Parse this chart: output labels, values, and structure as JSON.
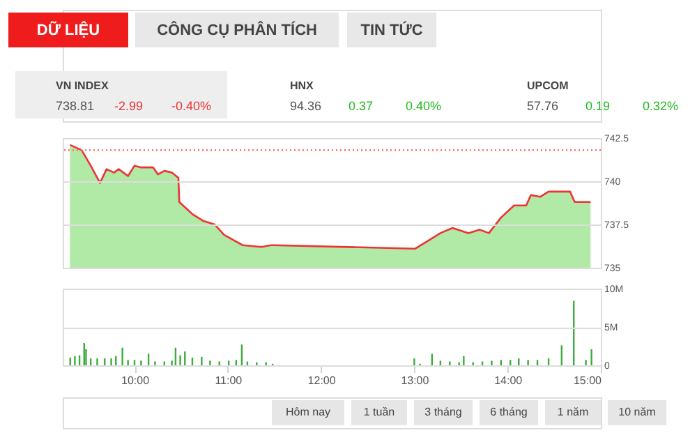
{
  "chart_data": [
    {
      "type": "other",
      "annotations": [
        "DỮ LIỆU",
        "CÔNG CỤ PHÂN TÍCH",
        "TIN TỨC",
        "VN INDEX",
        "738.81",
        "-2.99",
        "-0.40%",
        "HNX",
        "94.36",
        "0.37",
        "0.40%",
        "UPCOM",
        "57.76",
        "0.19",
        "0.32%"
      ],
      "colors": [
        "#ffffff",
        "#444444",
        "#444444",
        "#444444",
        "#555555",
        "#ee3333",
        "#ee3333",
        "#444444",
        "#555555",
        "#22bb22",
        "#22bb22",
        "#444444",
        "#555555",
        "#22bb22",
        "#22bb22"
      ]
    },
    {
      "type": "area",
      "xlim": [
        9.23,
        15.0
      ],
      "ylim": [
        735,
        742.5
      ],
      "yticks": [
        735,
        737.5,
        740,
        742.5
      ],
      "grid": "y",
      "tick_labels": "y",
      "x": [
        9.308,
        9.433,
        9.53,
        9.63,
        9.7,
        9.78,
        9.83,
        9.93,
        10.0,
        10.07,
        10.2,
        10.25,
        10.32,
        10.4,
        10.47,
        10.48,
        10.62,
        10.74,
        10.86,
        10.96,
        11.06,
        11.16,
        11.36,
        11.46,
        11.5,
        13.01,
        13.13,
        13.28,
        13.41,
        13.58,
        13.7,
        13.8,
        13.93,
        14.07,
        14.2,
        14.25,
        14.35,
        14.44,
        14.67,
        14.72,
        14.89
      ],
      "series": [
        {
          "type": "area",
          "color": "#7ddc6a",
          "values": [
            742.1,
            741.8,
            740.9,
            739.9,
            740.7,
            740.5,
            740.7,
            740.3,
            740.9,
            740.8,
            740.8,
            740.4,
            740.6,
            740.5,
            740.2,
            738.8,
            738.1,
            737.7,
            737.5,
            736.9,
            736.6,
            736.3,
            736.2,
            736.3,
            736.3,
            736.1,
            736.5,
            737.0,
            737.3,
            737.0,
            737.2,
            737.0,
            737.9,
            738.6,
            738.6,
            739.2,
            739.1,
            739.4,
            739.4,
            738.8,
            738.8
          ]
        },
        {
          "type": "line",
          "color": "#ee3333",
          "values": [
            742.1,
            741.8,
            740.9,
            739.9,
            740.7,
            740.5,
            740.7,
            740.3,
            740.9,
            740.8,
            740.8,
            740.4,
            740.6,
            740.5,
            740.2,
            738.8,
            738.1,
            737.7,
            737.5,
            736.9,
            736.6,
            736.3,
            736.2,
            736.3,
            736.3,
            736.1,
            736.5,
            737.0,
            737.3,
            737.0,
            737.2,
            737.0,
            737.9,
            738.6,
            738.6,
            739.2,
            739.1,
            739.4,
            739.4,
            738.8,
            738.8
          ]
        }
      ],
      "ref_lines": [
        {
          "axis": "y",
          "value": 741.8,
          "color": "#ff7777",
          "line_style": "dotted"
        }
      ]
    },
    {
      "type": "bar",
      "xlim": [
        9.23,
        15.0
      ],
      "ylim": [
        0,
        10
      ],
      "grid": "y",
      "xticks": [
        {
          "value": 10,
          "label": "10:00"
        },
        {
          "value": 11,
          "label": "11:00"
        },
        {
          "value": 12,
          "label": "12:00"
        },
        {
          "value": 13,
          "label": "13:00"
        },
        {
          "value": 14,
          "label": "14:00"
        },
        {
          "value": 15,
          "label": "15:00"
        }
      ],
      "yticks": [
        0,
        {
          "value": 5,
          "label": "5M"
        },
        {
          "value": 10,
          "label": "10M"
        }
      ],
      "series": [
        {
          "color": "#3cac3c",
          "x": [
            9.31,
            9.36,
            9.41,
            9.46,
            9.48,
            9.53,
            9.6,
            9.68,
            9.75,
            9.8,
            9.87,
            9.93,
            10.0,
            10.07,
            10.15,
            10.22,
            10.32,
            10.4,
            10.44,
            10.49,
            10.54,
            10.62,
            10.72,
            10.81,
            10.91,
            11.01,
            11.09,
            11.15,
            11.21,
            11.31,
            11.41,
            11.48,
            13.0,
            13.06,
            13.19,
            13.28,
            13.38,
            13.48,
            13.53,
            13.63,
            13.73,
            13.83,
            13.93,
            14.03,
            14.12,
            14.22,
            14.32,
            14.44,
            14.58,
            14.71,
            14.84,
            14.9
          ],
          "values": [
            1.0,
            1.2,
            1.3,
            2.9,
            2.1,
            0.9,
            0.9,
            0.9,
            0.9,
            1.2,
            2.3,
            0.7,
            0.7,
            0.6,
            1.5,
            0.5,
            0.5,
            0.6,
            2.3,
            1.3,
            1.8,
            1.0,
            1.1,
            0.6,
            0.5,
            0.6,
            0.7,
            2.7,
            0.5,
            0.4,
            0.4,
            0.2,
            0.9,
            0.2,
            1.5,
            0.6,
            0.5,
            0.4,
            1.2,
            0.4,
            0.5,
            0.6,
            0.7,
            0.7,
            0.9,
            0.7,
            0.7,
            0.9,
            2.6,
            8.4,
            0.7,
            2.1
          ]
        }
      ]
    },
    {
      "type": "other",
      "annotations": [
        "Hôm nay",
        "1 tuần",
        "3 tháng",
        "6 tháng",
        "1 năm",
        "10 năm"
      ]
    }
  ]
}
